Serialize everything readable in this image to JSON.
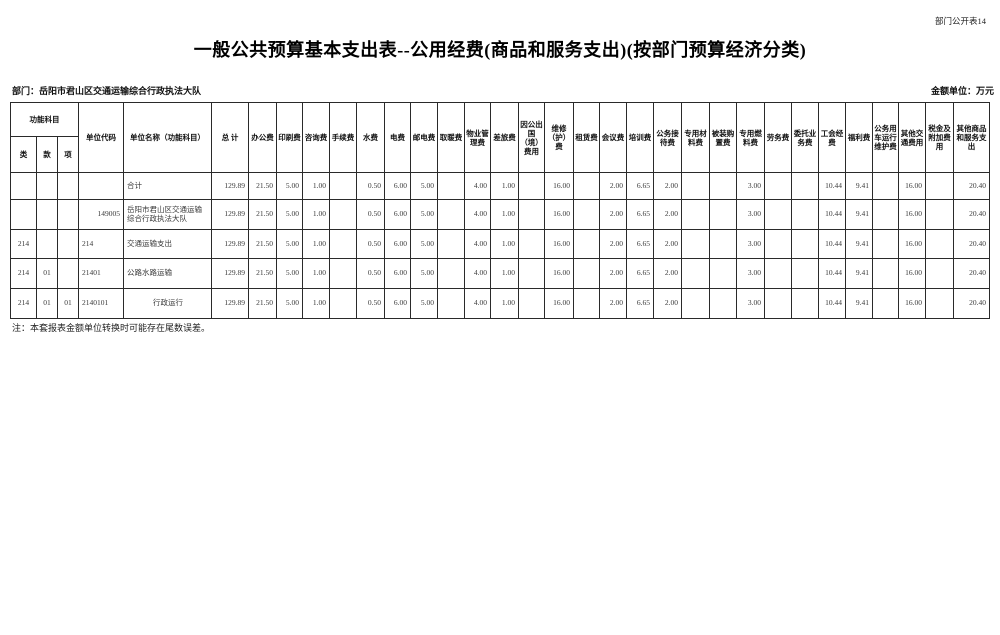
{
  "page": {
    "corner_label": "部门公开表14",
    "title": "一般公共预算基本支出表--公用经费(商品和服务支出)(按部门预算经济分类)",
    "department_label": "部门：岳阳市君山区交通运输综合行政执法大队",
    "unit_label": "金额单位：万元",
    "note": "注：本套报表金额单位转换时可能存在尾数误差。"
  },
  "table": {
    "group_header": "功能科目",
    "sub_headers": [
      "类",
      "款",
      "项"
    ],
    "columns": [
      "单位代码",
      "单位名称（功能科目）",
      "总  计",
      "办公费",
      "印刷费",
      "咨询费",
      "手续费",
      "水费",
      "电费",
      "邮电费",
      "取暖费",
      "物业管理费",
      "差旅费",
      "因公出国（境）费用",
      "维修（护）费",
      "租赁费",
      "会议费",
      "培训费",
      "公务接待费",
      "专用材料费",
      "被装购置费",
      "专用燃料费",
      "劳务费",
      "委托业务费",
      "工会经费",
      "福利费",
      "公务用车运行维护费",
      "其他交通费用",
      "税金及附加费用",
      "其他商品和服务支出"
    ],
    "rows": [
      [
        "",
        "",
        "",
        "",
        "合计",
        "129.89",
        "21.50",
        "5.00",
        "1.00",
        "",
        "0.50",
        "6.00",
        "5.00",
        "",
        "4.00",
        "1.00",
        "",
        "16.00",
        "",
        "2.00",
        "6.65",
        "2.00",
        "",
        "",
        "3.00",
        "",
        "",
        "10.44",
        "9.41",
        "",
        "16.00",
        "",
        "20.40"
      ],
      [
        "",
        "",
        "",
        "149005",
        "岳阳市君山区交通运输综合行政执法大队",
        "129.89",
        "21.50",
        "5.00",
        "1.00",
        "",
        "0.50",
        "6.00",
        "5.00",
        "",
        "4.00",
        "1.00",
        "",
        "16.00",
        "",
        "2.00",
        "6.65",
        "2.00",
        "",
        "",
        "3.00",
        "",
        "",
        "10.44",
        "9.41",
        "",
        "16.00",
        "",
        "20.40"
      ],
      [
        "214",
        "",
        "",
        "214",
        "交通运输支出",
        "129.89",
        "21.50",
        "5.00",
        "1.00",
        "",
        "0.50",
        "6.00",
        "5.00",
        "",
        "4.00",
        "1.00",
        "",
        "16.00",
        "",
        "2.00",
        "6.65",
        "2.00",
        "",
        "",
        "3.00",
        "",
        "",
        "10.44",
        "9.41",
        "",
        "16.00",
        "",
        "20.40"
      ],
      [
        "214",
        "01",
        "",
        "21401",
        "公路水路运输",
        "129.89",
        "21.50",
        "5.00",
        "1.00",
        "",
        "0.50",
        "6.00",
        "5.00",
        "",
        "4.00",
        "1.00",
        "",
        "16.00",
        "",
        "2.00",
        "6.65",
        "2.00",
        "",
        "",
        "3.00",
        "",
        "",
        "10.44",
        "9.41",
        "",
        "16.00",
        "",
        "20.40"
      ],
      [
        "214",
        "01",
        "01",
        "2140101",
        "行政运行",
        "129.89",
        "21.50",
        "5.00",
        "1.00",
        "",
        "0.50",
        "6.00",
        "5.00",
        "",
        "4.00",
        "1.00",
        "",
        "16.00",
        "",
        "2.00",
        "6.65",
        "2.00",
        "",
        "",
        "3.00",
        "",
        "",
        "10.44",
        "9.41",
        "",
        "16.00",
        "",
        "20.40"
      ]
    ]
  }
}
